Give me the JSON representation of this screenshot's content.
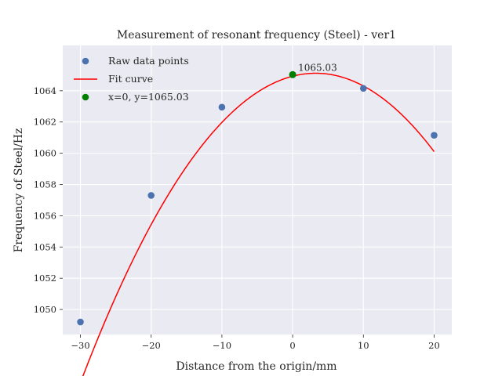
{
  "chart_data": {
    "type": "scatter",
    "title": "Measurement of resonant frequency (Steel) - ver1",
    "xlabel": "Distance from the origin/mm",
    "ylabel": "Frequency of Steel/Hz",
    "xlim": [
      -32.5,
      22.5
    ],
    "ylim": [
      1048.4,
      1066.9
    ],
    "xticks": [
      -30,
      -20,
      -10,
      0,
      10,
      20
    ],
    "xtick_labels": [
      "−30",
      "−20",
      "−10",
      "0",
      "10",
      "20"
    ],
    "yticks": [
      1050,
      1052,
      1054,
      1056,
      1058,
      1060,
      1062,
      1064
    ],
    "ytick_labels": [
      "1050",
      "1052",
      "1054",
      "1056",
      "1058",
      "1060",
      "1062",
      "1064"
    ],
    "grid": true,
    "legend_position": "top-left",
    "series": [
      {
        "name": "Raw data points",
        "kind": "scatter",
        "color": "#4c72b0",
        "x": [
          -30,
          -20,
          -10,
          0,
          10,
          20
        ],
        "y": [
          1049.2,
          1057.3,
          1062.95,
          1065.03,
          1064.15,
          1061.15
        ]
      },
      {
        "name": "Fit curve",
        "kind": "line",
        "color": "#ff0000",
        "coefficients": [
          -0.0179,
          0.1167,
          1064.93
        ],
        "x_range": [
          -30,
          20
        ]
      },
      {
        "name": "x=0, y=1065.03",
        "kind": "scatter",
        "color": "#008000",
        "x": [
          0
        ],
        "y": [
          1065.03
        ]
      }
    ],
    "annotations": [
      {
        "text": "1065.03",
        "x": 0,
        "y": 1065.03
      }
    ]
  }
}
